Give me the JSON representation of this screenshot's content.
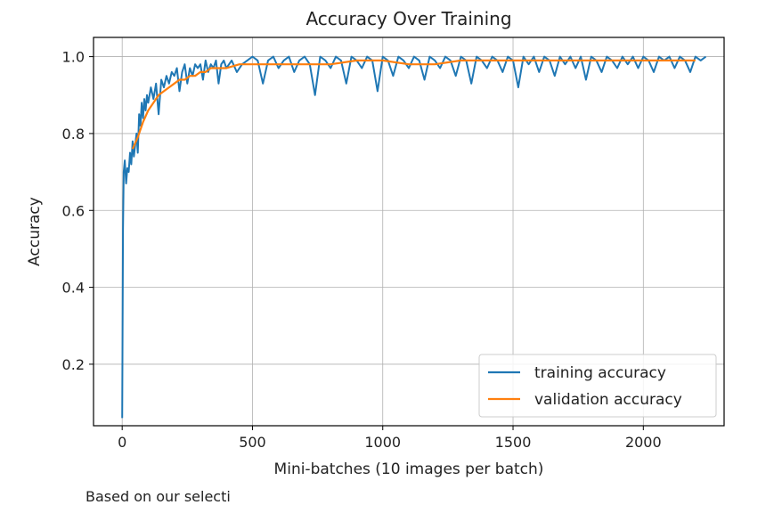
{
  "chart_data": {
    "type": "line",
    "title": "Accuracy Over Training",
    "xlabel": "Mini-batches (10 images per batch)",
    "ylabel": "Accuracy",
    "xlim": [
      -110,
      2310
    ],
    "ylim": [
      0.04,
      1.05
    ],
    "x_ticks": [
      0,
      500,
      1000,
      1500,
      2000
    ],
    "y_ticks": [
      0.2,
      0.4,
      0.6,
      0.8,
      1.0
    ],
    "x_tick_labels": [
      "0",
      "500",
      "1000",
      "1500",
      "2000"
    ],
    "y_tick_labels": [
      "0.2",
      "0.4",
      "0.6",
      "0.8",
      "1.0"
    ],
    "grid": true,
    "legend_position": "lower-right",
    "series": [
      {
        "name": "training accuracy",
        "color": "#1f77b4",
        "x": [
          0,
          3,
          6,
          10,
          15,
          20,
          25,
          30,
          35,
          40,
          45,
          50,
          55,
          60,
          65,
          70,
          75,
          80,
          85,
          90,
          95,
          100,
          110,
          120,
          130,
          140,
          150,
          160,
          170,
          180,
          190,
          200,
          210,
          220,
          230,
          240,
          250,
          260,
          270,
          280,
          290,
          300,
          310,
          320,
          330,
          340,
          350,
          360,
          370,
          380,
          390,
          400,
          420,
          440,
          460,
          480,
          500,
          520,
          540,
          560,
          580,
          600,
          620,
          640,
          660,
          680,
          700,
          720,
          740,
          760,
          780,
          800,
          820,
          840,
          860,
          880,
          900,
          920,
          940,
          960,
          980,
          1000,
          1020,
          1040,
          1060,
          1080,
          1100,
          1120,
          1140,
          1160,
          1180,
          1200,
          1220,
          1240,
          1260,
          1280,
          1300,
          1320,
          1340,
          1360,
          1380,
          1400,
          1420,
          1440,
          1460,
          1480,
          1500,
          1520,
          1540,
          1560,
          1580,
          1600,
          1620,
          1640,
          1660,
          1680,
          1700,
          1720,
          1740,
          1760,
          1780,
          1800,
          1820,
          1840,
          1860,
          1880,
          1900,
          1920,
          1940,
          1960,
          1980,
          2000,
          2020,
          2040,
          2060,
          2080,
          2100,
          2120,
          2140,
          2160,
          2180,
          2200,
          2220,
          2240
        ],
        "values": [
          0.06,
          0.55,
          0.7,
          0.73,
          0.67,
          0.71,
          0.7,
          0.75,
          0.72,
          0.78,
          0.74,
          0.77,
          0.8,
          0.75,
          0.85,
          0.82,
          0.88,
          0.84,
          0.89,
          0.86,
          0.9,
          0.88,
          0.92,
          0.89,
          0.93,
          0.85,
          0.94,
          0.92,
          0.95,
          0.93,
          0.96,
          0.95,
          0.97,
          0.91,
          0.96,
          0.98,
          0.93,
          0.97,
          0.95,
          0.98,
          0.97,
          0.98,
          0.94,
          0.99,
          0.96,
          0.98,
          0.97,
          0.99,
          0.93,
          0.98,
          0.99,
          0.97,
          0.99,
          0.96,
          0.98,
          0.99,
          1.0,
          0.99,
          0.93,
          0.99,
          1.0,
          0.97,
          0.99,
          1.0,
          0.96,
          0.99,
          1.0,
          0.98,
          0.9,
          1.0,
          0.99,
          0.97,
          1.0,
          0.99,
          0.93,
          1.0,
          0.99,
          0.97,
          1.0,
          0.99,
          0.91,
          1.0,
          0.99,
          0.95,
          1.0,
          0.99,
          0.97,
          1.0,
          0.99,
          0.94,
          1.0,
          0.99,
          0.97,
          1.0,
          0.99,
          0.95,
          1.0,
          0.99,
          0.93,
          1.0,
          0.99,
          0.97,
          1.0,
          0.99,
          0.96,
          1.0,
          0.99,
          0.92,
          1.0,
          0.98,
          1.0,
          0.96,
          1.0,
          0.99,
          0.95,
          1.0,
          0.98,
          1.0,
          0.97,
          1.0,
          0.94,
          1.0,
          0.99,
          0.96,
          1.0,
          0.99,
          0.97,
          1.0,
          0.98,
          1.0,
          0.97,
          1.0,
          0.99,
          0.96,
          1.0,
          0.99,
          1.0,
          0.97,
          1.0,
          0.99,
          0.96,
          1.0,
          0.99,
          1.0
        ]
      },
      {
        "name": "validation accuracy",
        "color": "#ff7f0e",
        "x": [
          40,
          60,
          80,
          100,
          120,
          140,
          160,
          180,
          200,
          220,
          240,
          260,
          280,
          300,
          320,
          340,
          360,
          400,
          450,
          500,
          550,
          600,
          700,
          800,
          900,
          1000,
          1100,
          1200,
          1300,
          1400,
          1500,
          1600,
          1700,
          1800,
          1900,
          2000,
          2100,
          2200
        ],
        "values": [
          0.76,
          0.79,
          0.83,
          0.86,
          0.88,
          0.9,
          0.91,
          0.92,
          0.93,
          0.94,
          0.94,
          0.95,
          0.95,
          0.96,
          0.96,
          0.97,
          0.97,
          0.97,
          0.98,
          0.98,
          0.98,
          0.98,
          0.98,
          0.98,
          0.99,
          0.99,
          0.98,
          0.98,
          0.99,
          0.99,
          0.99,
          0.99,
          0.99,
          0.99,
          0.99,
          0.99,
          0.99,
          0.99
        ]
      }
    ]
  },
  "caption": "Based on our selecti"
}
